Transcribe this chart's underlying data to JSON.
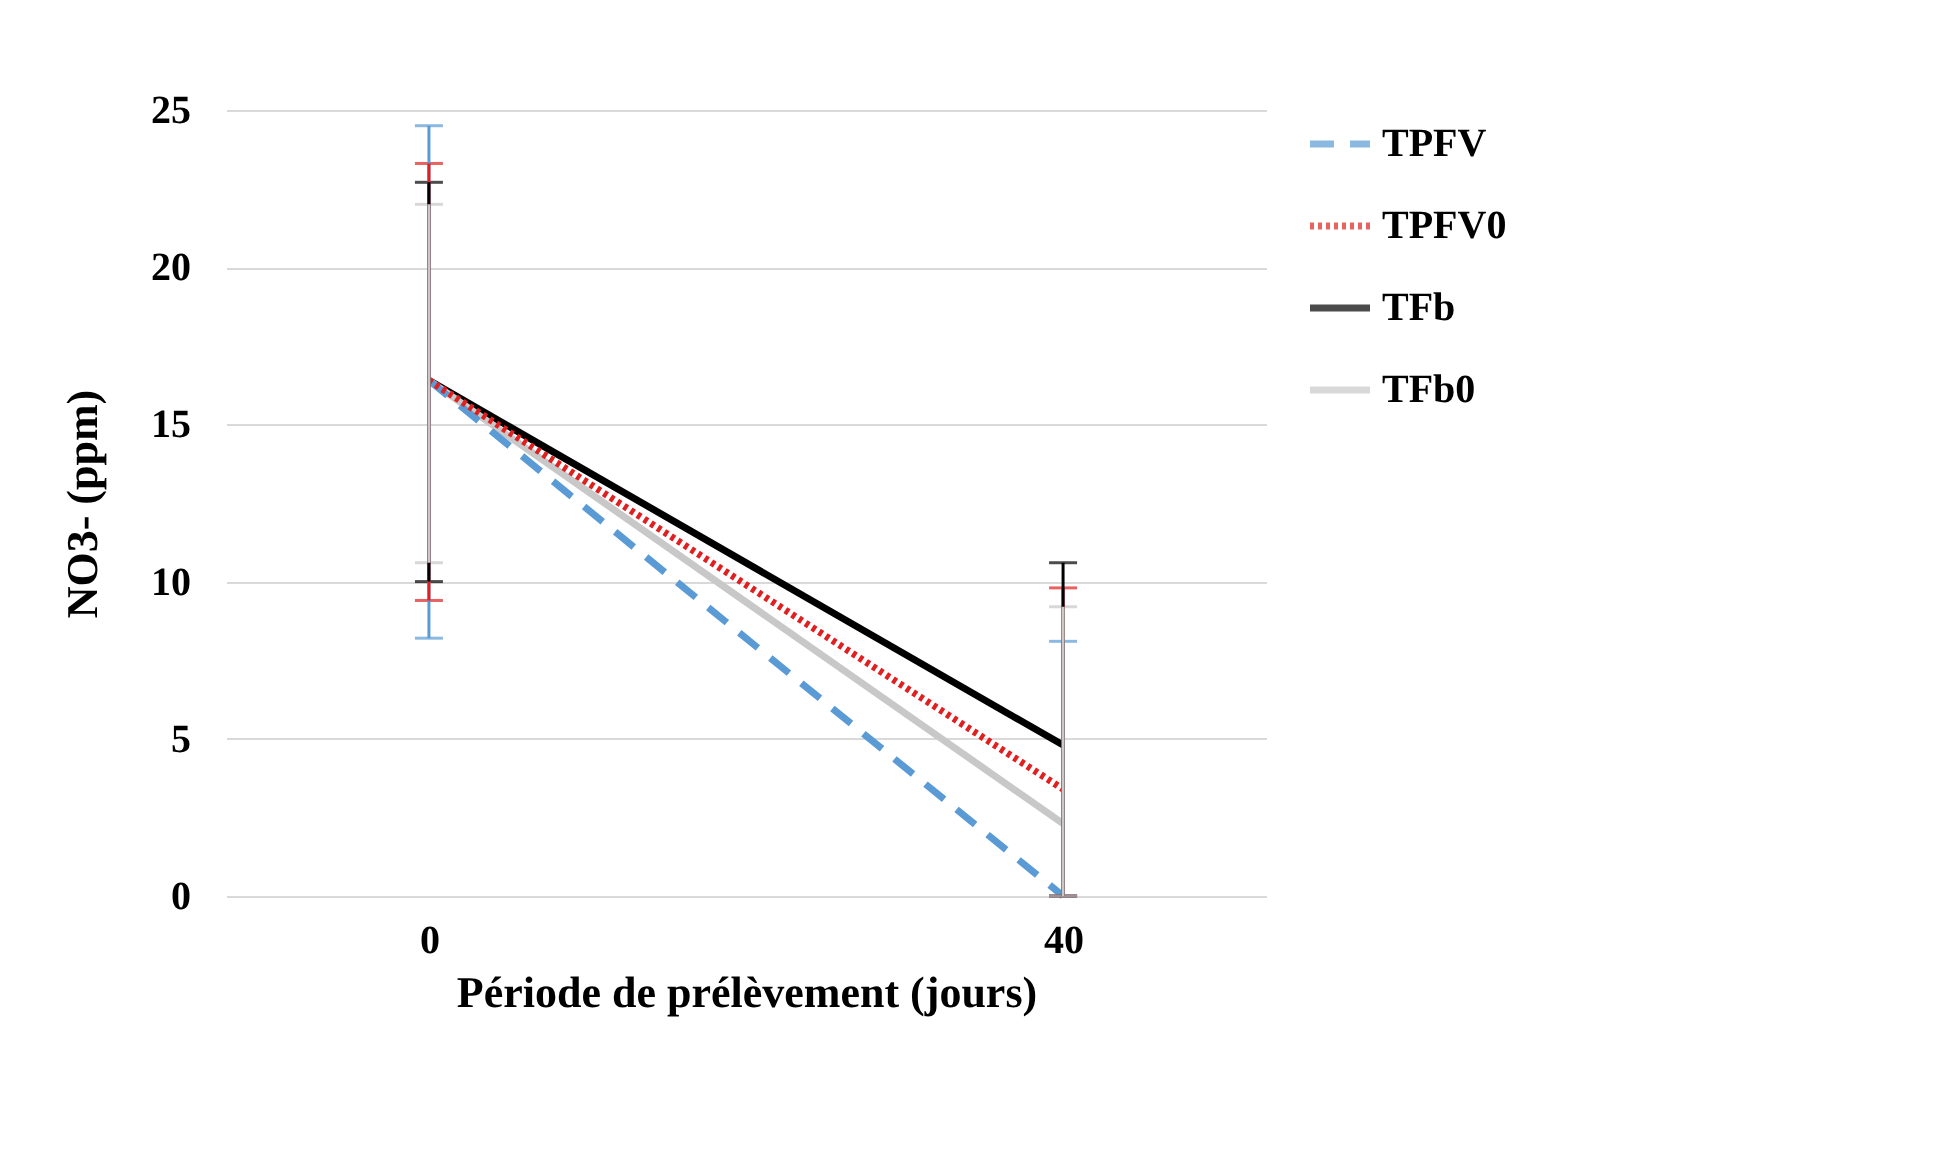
{
  "chart_data": {
    "type": "line",
    "xlabel": "Période de prélèvement (jours)",
    "ylabel": "NO3- (ppm)",
    "categories": [
      "0",
      "40"
    ],
    "series": [
      {
        "name": "TPFV",
        "color": "#5b9bd5",
        "line_style": "dashed",
        "values": [
          16.4,
          0.0
        ],
        "errors": [
          [
            8.2,
            24.5
          ],
          [
            0,
            8.1
          ]
        ]
      },
      {
        "name": "TPFV0",
        "color": "#e02020",
        "line_style": "dotted",
        "values": [
          16.4,
          3.4
        ],
        "errors": [
          [
            9.4,
            23.3
          ],
          [
            0,
            9.8
          ]
        ]
      },
      {
        "name": "TFb",
        "color": "#000000",
        "line_style": "solid",
        "values": [
          16.4,
          4.8
        ],
        "errors": [
          [
            10.0,
            22.7
          ],
          [
            0,
            10.6
          ]
        ]
      },
      {
        "name": "TFb0",
        "color": "#c8c8c8",
        "line_style": "solid",
        "values": [
          16.4,
          2.3
        ],
        "errors": [
          [
            10.6,
            22.0
          ],
          [
            0,
            9.2
          ]
        ]
      }
    ],
    "ylim": [
      0,
      25
    ],
    "yticks": [
      0,
      5,
      10,
      15,
      20,
      25
    ],
    "grid": "y",
    "legend": "right",
    "marker": "none"
  }
}
